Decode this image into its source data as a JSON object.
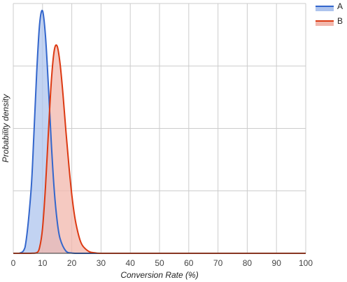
{
  "chart_data": {
    "type": "area",
    "title": "",
    "xlabel": "Conversion Rate (%)",
    "ylabel": "Probability density",
    "xlim": [
      0,
      100
    ],
    "ylim": [
      0,
      0.17
    ],
    "x_ticks": [
      0,
      10,
      20,
      30,
      40,
      50,
      60,
      70,
      80,
      90,
      100
    ],
    "y_tick_labels_shown": false,
    "grid": true,
    "legend_position": "top-right",
    "series": [
      {
        "name": "A",
        "color": "#3366cc",
        "fill": "#aec4ee",
        "x": [
          0,
          2,
          4,
          6,
          7,
          8,
          9,
          10,
          11,
          12,
          13,
          14,
          15,
          16,
          18,
          20,
          22,
          24,
          26,
          28,
          30,
          40,
          50,
          60,
          70,
          80,
          90,
          100
        ],
        "y": [
          0,
          0.0,
          0.004,
          0.041,
          0.079,
          0.123,
          0.156,
          0.165,
          0.148,
          0.114,
          0.075,
          0.043,
          0.022,
          0.01,
          0.0015,
          0.0002,
          0.0,
          0,
          0,
          0,
          0,
          0,
          0,
          0,
          0,
          0,
          0,
          0
        ]
      },
      {
        "name": "B",
        "color": "#dc3912",
        "fill": "#f2b7ac",
        "x": [
          0,
          2,
          4,
          6,
          8,
          9,
          10,
          11,
          12,
          13,
          14,
          15,
          16,
          17,
          18,
          19,
          20,
          21,
          22,
          23,
          24,
          26,
          28,
          30,
          40,
          50,
          60,
          70,
          80,
          90,
          100
        ],
        "y": [
          0,
          0,
          0.0,
          0.0,
          0.0004,
          0.004,
          0.017,
          0.045,
          0.082,
          0.117,
          0.138,
          0.141,
          0.129,
          0.108,
          0.083,
          0.06,
          0.04,
          0.025,
          0.015,
          0.008,
          0.0044,
          0.0011,
          0.0003,
          0.0,
          0,
          0,
          0,
          0,
          0,
          0,
          0
        ]
      }
    ]
  }
}
